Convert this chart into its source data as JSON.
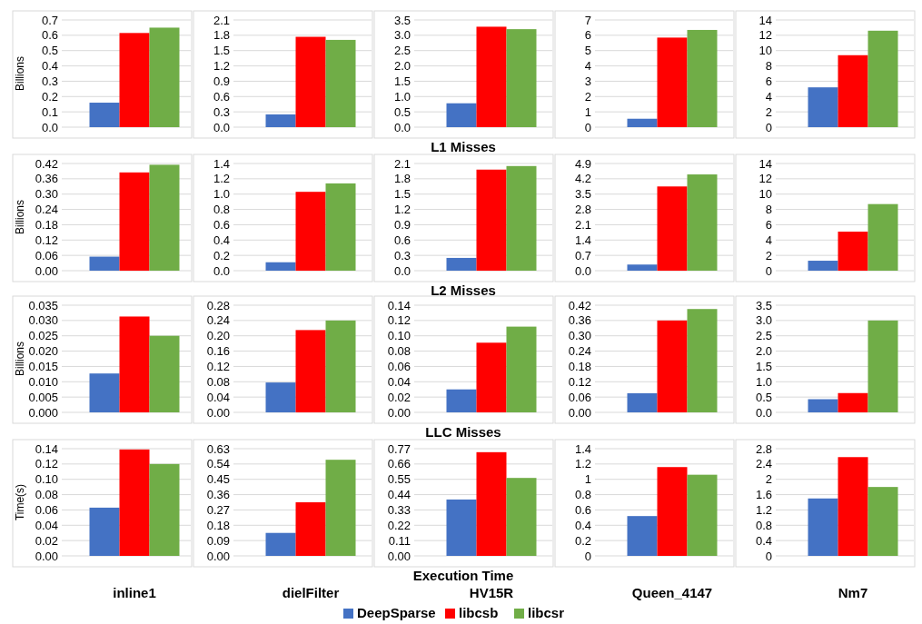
{
  "chart_data": [
    {
      "type": "bar",
      "categories": [
        null
      ],
      "ylabel": "Billions",
      "ylim": [
        0,
        0.7
      ],
      "yticks": [
        {
          "value": 0,
          "label": "0.0"
        },
        0.1,
        0.2,
        0.3,
        0.4,
        0.5,
        0.6,
        0.7
      ],
      "grid": "y",
      "tick_labels": "y",
      "series": [
        {
          "color": "#4472c4",
          "values": [
            0.16
          ]
        },
        {
          "color": "#ff0000",
          "values": [
            0.615
          ]
        },
        {
          "color": "#70ad47",
          "values": [
            0.65
          ]
        }
      ]
    },
    {
      "type": "bar",
      "categories": [
        null
      ],
      "ylim": [
        0,
        2.1
      ],
      "yticks": [
        {
          "value": 0,
          "label": "0.0"
        },
        0.3,
        0.6,
        0.9,
        1.2,
        1.5,
        1.8,
        2.1
      ],
      "grid": "y",
      "tick_labels": "y",
      "series": [
        {
          "color": "#4472c4",
          "values": [
            0.25
          ]
        },
        {
          "color": "#ff0000",
          "values": [
            1.77
          ]
        },
        {
          "color": "#70ad47",
          "values": [
            1.71
          ]
        }
      ]
    },
    {
      "type": "bar",
      "title": "L1 Misses",
      "categories": [
        null
      ],
      "ylim": [
        0,
        3.5
      ],
      "yticks": [
        {
          "value": 0,
          "label": "0.0"
        },
        0.5,
        {
          "value": 1,
          "label": "1.0"
        },
        1.5,
        {
          "value": 2,
          "label": "2.0"
        },
        2.5,
        {
          "value": 3,
          "label": "3.0"
        },
        3.5
      ],
      "grid": "y",
      "tick_labels": "y",
      "series": [
        {
          "color": "#4472c4",
          "values": [
            0.78
          ]
        },
        {
          "color": "#ff0000",
          "values": [
            3.28
          ]
        },
        {
          "color": "#70ad47",
          "values": [
            3.2
          ]
        }
      ]
    },
    {
      "type": "bar",
      "categories": [
        null
      ],
      "ylim": [
        0,
        7
      ],
      "yticks": [
        0,
        1,
        2,
        3,
        4,
        5,
        6,
        7
      ],
      "grid": "y",
      "tick_labels": "y",
      "series": [
        {
          "color": "#4472c4",
          "values": [
            0.55
          ]
        },
        {
          "color": "#ff0000",
          "values": [
            5.85
          ]
        },
        {
          "color": "#70ad47",
          "values": [
            6.35
          ]
        }
      ]
    },
    {
      "type": "bar",
      "categories": [
        null
      ],
      "ylim": [
        0,
        14
      ],
      "yticks": [
        0,
        2,
        4,
        6,
        8,
        10,
        12,
        14
      ],
      "grid": "y",
      "tick_labels": "y",
      "series": [
        {
          "color": "#4472c4",
          "values": [
            5.2
          ]
        },
        {
          "color": "#ff0000",
          "values": [
            9.4
          ]
        },
        {
          "color": "#70ad47",
          "values": [
            12.6
          ]
        }
      ]
    },
    {
      "type": "bar",
      "categories": [
        null
      ],
      "ylabel": "Billions",
      "ylim": [
        0,
        0.42
      ],
      "yticks": [
        {
          "value": 0,
          "label": "0.00"
        },
        0.06,
        0.12,
        0.18,
        0.24,
        {
          "value": 0.3,
          "label": "0.30"
        },
        0.36,
        0.42
      ],
      "grid": "y",
      "tick_labels": "y",
      "series": [
        {
          "color": "#4472c4",
          "values": [
            0.055
          ]
        },
        {
          "color": "#ff0000",
          "values": [
            0.385
          ]
        },
        {
          "color": "#70ad47",
          "values": [
            0.415
          ]
        }
      ]
    },
    {
      "type": "bar",
      "categories": [
        null
      ],
      "ylim": [
        0,
        1.4
      ],
      "yticks": [
        {
          "value": 0,
          "label": "0.0"
        },
        0.2,
        0.4,
        0.6,
        0.8,
        {
          "value": 1,
          "label": "1.0"
        },
        1.2,
        1.4
      ],
      "grid": "y",
      "tick_labels": "y",
      "series": [
        {
          "color": "#4472c4",
          "values": [
            0.11
          ]
        },
        {
          "color": "#ff0000",
          "values": [
            1.03
          ]
        },
        {
          "color": "#70ad47",
          "values": [
            1.14
          ]
        }
      ]
    },
    {
      "type": "bar",
      "title": "L2 Misses",
      "categories": [
        null
      ],
      "ylim": [
        0,
        2.1
      ],
      "yticks": [
        {
          "value": 0,
          "label": "0.0"
        },
        0.3,
        0.6,
        0.9,
        1.2,
        1.5,
        1.8,
        2.1
      ],
      "grid": "y",
      "tick_labels": "y",
      "series": [
        {
          "color": "#4472c4",
          "values": [
            0.25
          ]
        },
        {
          "color": "#ff0000",
          "values": [
            1.98
          ]
        },
        {
          "color": "#70ad47",
          "values": [
            2.05
          ]
        }
      ]
    },
    {
      "type": "bar",
      "categories": [
        null
      ],
      "ylim": [
        0,
        4.9
      ],
      "yticks": [
        {
          "value": 0,
          "label": "0.0"
        },
        0.7,
        1.4,
        2.1,
        2.8,
        3.5,
        4.2,
        4.9
      ],
      "grid": "y",
      "tick_labels": "y",
      "series": [
        {
          "color": "#4472c4",
          "values": [
            0.28
          ]
        },
        {
          "color": "#ff0000",
          "values": [
            3.85
          ]
        },
        {
          "color": "#70ad47",
          "values": [
            4.4
          ]
        }
      ]
    },
    {
      "type": "bar",
      "categories": [
        null
      ],
      "ylim": [
        0,
        14
      ],
      "yticks": [
        0,
        2,
        4,
        6,
        8,
        10,
        12,
        14
      ],
      "grid": "y",
      "tick_labels": "y",
      "series": [
        {
          "color": "#4472c4",
          "values": [
            1.3
          ]
        },
        {
          "color": "#ff0000",
          "values": [
            5.1
          ]
        },
        {
          "color": "#70ad47",
          "values": [
            8.7
          ]
        }
      ]
    },
    {
      "type": "bar",
      "categories": [
        null
      ],
      "ylabel": "Billions",
      "ylim": [
        0,
        0.035
      ],
      "yticks": [
        {
          "value": 0,
          "label": "0.000"
        },
        0.005,
        {
          "value": 0.01,
          "label": "0.010"
        },
        0.015,
        {
          "value": 0.02,
          "label": "0.020"
        },
        0.025,
        {
          "value": 0.03,
          "label": "0.030"
        },
        0.035
      ],
      "grid": "y",
      "tick_labels": "y",
      "series": [
        {
          "color": "#4472c4",
          "values": [
            0.0127
          ]
        },
        {
          "color": "#ff0000",
          "values": [
            0.0313
          ]
        },
        {
          "color": "#70ad47",
          "values": [
            0.025
          ]
        }
      ]
    },
    {
      "type": "bar",
      "categories": [
        null
      ],
      "ylim": [
        0,
        0.28
      ],
      "yticks": [
        {
          "value": 0,
          "label": "0.00"
        },
        0.04,
        0.08,
        0.12,
        0.16,
        {
          "value": 0.2,
          "label": "0.20"
        },
        0.24,
        0.28
      ],
      "grid": "y",
      "tick_labels": "y",
      "series": [
        {
          "color": "#4472c4",
          "values": [
            0.078
          ]
        },
        {
          "color": "#ff0000",
          "values": [
            0.215
          ]
        },
        {
          "color": "#70ad47",
          "values": [
            0.24
          ]
        }
      ]
    },
    {
      "type": "bar",
      "title": "LLC Misses",
      "categories": [
        null
      ],
      "ylim": [
        0,
        0.14
      ],
      "yticks": [
        {
          "value": 0,
          "label": "0.00"
        },
        0.02,
        0.04,
        0.06,
        0.08,
        {
          "value": 0.1,
          "label": "0.10"
        },
        0.12,
        0.14
      ],
      "grid": "y",
      "tick_labels": "y",
      "series": [
        {
          "color": "#4472c4",
          "values": [
            0.03
          ]
        },
        {
          "color": "#ff0000",
          "values": [
            0.091
          ]
        },
        {
          "color": "#70ad47",
          "values": [
            0.112
          ]
        }
      ]
    },
    {
      "type": "bar",
      "categories": [
        null
      ],
      "ylim": [
        0,
        0.42
      ],
      "yticks": [
        {
          "value": 0,
          "label": "0.00"
        },
        0.06,
        0.12,
        0.18,
        0.24,
        {
          "value": 0.3,
          "label": "0.30"
        },
        0.36,
        0.42
      ],
      "grid": "y",
      "tick_labels": "y",
      "series": [
        {
          "color": "#4472c4",
          "values": [
            0.075
          ]
        },
        {
          "color": "#ff0000",
          "values": [
            0.36
          ]
        },
        {
          "color": "#70ad47",
          "values": [
            0.405
          ]
        }
      ]
    },
    {
      "type": "bar",
      "categories": [
        null
      ],
      "ylim": [
        0,
        3.5
      ],
      "yticks": [
        {
          "value": 0,
          "label": "0.0"
        },
        0.5,
        {
          "value": 1,
          "label": "1.0"
        },
        1.5,
        {
          "value": 2,
          "label": "2.0"
        },
        2.5,
        {
          "value": 3,
          "label": "3.0"
        },
        3.5
      ],
      "grid": "y",
      "tick_labels": "y",
      "series": [
        {
          "color": "#4472c4",
          "values": [
            0.43
          ]
        },
        {
          "color": "#ff0000",
          "values": [
            0.63
          ]
        },
        {
          "color": "#70ad47",
          "values": [
            3.0
          ]
        }
      ]
    },
    {
      "type": "bar",
      "categories": [
        "inline1"
      ],
      "ylabel": "Time(s)",
      "ylim": [
        0,
        0.14
      ],
      "yticks": [
        {
          "value": 0,
          "label": "0.00"
        },
        0.02,
        0.04,
        0.06,
        0.08,
        {
          "value": 0.1,
          "label": "0.10"
        },
        0.12,
        0.14
      ],
      "grid": "y",
      "series": [
        {
          "color": "#4472c4",
          "values": [
            0.063
          ]
        },
        {
          "color": "#ff0000",
          "values": [
            0.139
          ]
        },
        {
          "color": "#70ad47",
          "values": [
            0.12
          ]
        }
      ]
    },
    {
      "type": "bar",
      "categories": [
        "dielFilter"
      ],
      "ylim": [
        0,
        0.63
      ],
      "yticks": [
        {
          "value": 0,
          "label": "0.00"
        },
        0.09,
        0.18,
        0.27,
        0.36,
        0.45,
        0.54,
        0.63
      ],
      "grid": "y",
      "series": [
        {
          "color": "#4472c4",
          "values": [
            0.135
          ]
        },
        {
          "color": "#ff0000",
          "values": [
            0.315
          ]
        },
        {
          "color": "#70ad47",
          "values": [
            0.565
          ]
        }
      ]
    },
    {
      "type": "bar",
      "title": "Execution Time",
      "categories": [
        "HV15R"
      ],
      "ylim": [
        0,
        0.77
      ],
      "yticks": [
        {
          "value": 0,
          "label": "0.00"
        },
        0.11,
        0.22,
        0.33,
        0.44,
        0.55,
        0.66,
        0.77
      ],
      "grid": "y",
      "legend": "bottom",
      "series": [
        {
          "name": "DeepSparse",
          "color": "#4472c4",
          "values": [
            0.405
          ]
        },
        {
          "name": "libcsb",
          "color": "#ff0000",
          "values": [
            0.745
          ]
        },
        {
          "name": "libcsr",
          "color": "#70ad47",
          "values": [
            0.56
          ]
        }
      ]
    },
    {
      "type": "bar",
      "categories": [
        "Queen_4147"
      ],
      "ylim": [
        0,
        1.4
      ],
      "yticks": [
        0,
        0.2,
        0.4,
        0.6,
        0.8,
        1,
        1.2,
        1.4
      ],
      "grid": "y",
      "series": [
        {
          "color": "#4472c4",
          "values": [
            0.52
          ]
        },
        {
          "color": "#ff0000",
          "values": [
            1.16
          ]
        },
        {
          "color": "#70ad47",
          "values": [
            1.06
          ]
        }
      ]
    },
    {
      "type": "bar",
      "categories": [
        "Nm7"
      ],
      "ylim": [
        0,
        2.8
      ],
      "yticks": [
        0,
        0.4,
        0.8,
        1.2,
        1.6,
        2,
        2.4,
        2.8
      ],
      "grid": "y",
      "series": [
        {
          "color": "#4472c4",
          "values": [
            1.5
          ]
        },
        {
          "color": "#ff0000",
          "values": [
            2.58
          ]
        },
        {
          "color": "#70ad47",
          "values": [
            1.8
          ]
        }
      ]
    }
  ]
}
